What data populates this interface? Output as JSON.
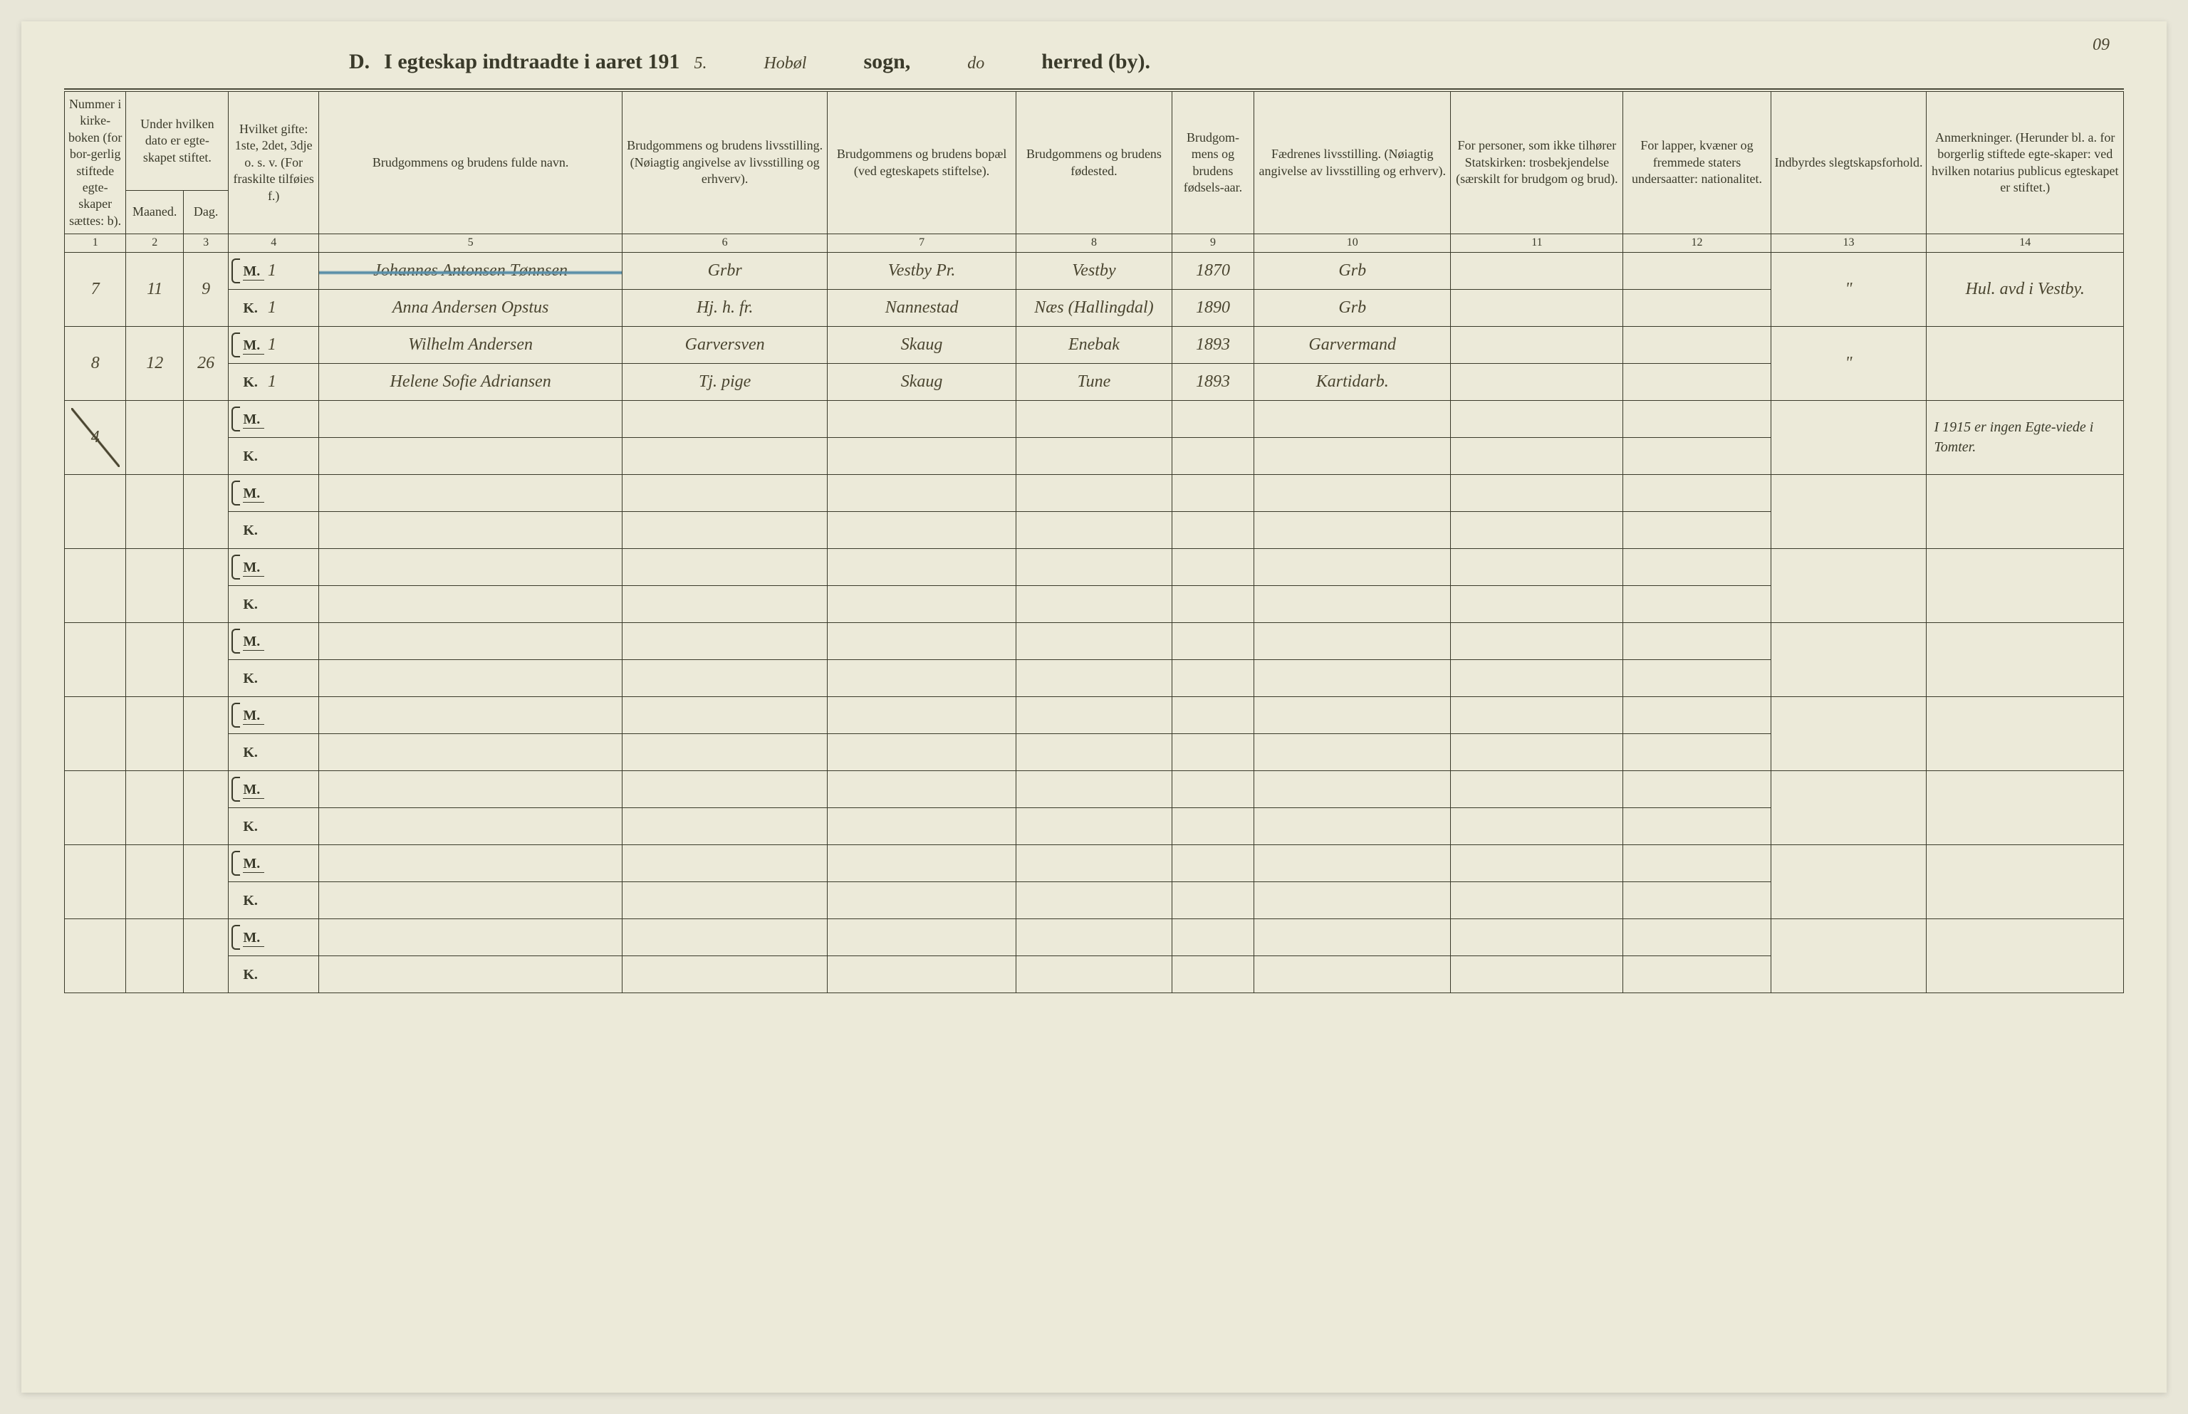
{
  "page_number_hand": "09",
  "title": {
    "prefix": "D.",
    "main": "I egteskap indtraadte i aaret 191",
    "year_hand": "5.",
    "sogn_hand": "Hobøl",
    "sogn_label": "sogn,",
    "herred_hand": "do",
    "herred_label": "herred (by)."
  },
  "headers": {
    "c1": "Nummer i kirke-boken (for bor-gerlig stiftede egte-skaper sættes: b).",
    "c2a": "Under hvilken dato er egte-skapet stiftet.",
    "c2_m": "Maaned.",
    "c2_d": "Dag.",
    "c4": "Hvilket gifte: 1ste, 2det, 3dje o. s. v. (For fraskilte tilføies f.)",
    "c5": "Brudgommens og brudens fulde navn.",
    "c6": "Brudgommens og brudens livsstilling. (Nøiagtig angivelse av livsstilling og erhverv).",
    "c7": "Brudgommens og brudens bopæl (ved egteskapets stiftelse).",
    "c8": "Brudgommens og brudens fødested.",
    "c9": "Brudgom-mens og brudens fødsels-aar.",
    "c10": "Fædrenes livsstilling. (Nøiagtig angivelse av livsstilling og erhverv).",
    "c11": "For personer, som ikke tilhører Statskirken: trosbekjendelse (særskilt for brudgom og brud).",
    "c12": "For lapper, kvæner og fremmede staters undersaatter: nationalitet.",
    "c13": "Indbyrdes slegtskapsforhold.",
    "c14": "Anmerkninger. (Herunder bl. a. for borgerlig stiftede egte-skaper: ved hvilken notarius publicus egteskapet er stiftet.)"
  },
  "col_nums": [
    "1",
    "2",
    "3",
    "4",
    "5",
    "6",
    "7",
    "8",
    "9",
    "10",
    "11",
    "12",
    "13",
    "14"
  ],
  "rows": [
    {
      "num": "7",
      "maaned": "11",
      "dag": "9",
      "m": {
        "gifte": "1",
        "navn": "Johannes Antonsen Tønnsen",
        "liv": "Grbr",
        "bopael": "Vestby Pr.",
        "fodested": "Vestby",
        "aar": "1870",
        "faedre": "Grb",
        "c11": "",
        "c12": "",
        "anm": "Hul. avd i Vestby."
      },
      "k": {
        "gifte": "1",
        "navn": "Anna Andersen Opstus",
        "liv": "Hj. h. fr.",
        "bopael": "Nannestad",
        "fodested": "Næs (Hallingdal)",
        "aar": "1890",
        "faedre": "Grb",
        "c11": "",
        "c12": "",
        "anm": ""
      },
      "c13": "\"",
      "struck": true
    },
    {
      "num": "8",
      "maaned": "12",
      "dag": "26",
      "m": {
        "gifte": "1",
        "navn": "Wilhelm Andersen",
        "liv": "Garversven",
        "bopael": "Skaug",
        "fodested": "Enebak",
        "aar": "1893",
        "faedre": "Garvermand",
        "c11": "",
        "c12": "",
        "anm": ""
      },
      "k": {
        "gifte": "1",
        "navn": "Helene Sofie Adriansen",
        "liv": "Tj. pige",
        "bopael": "Skaug",
        "fodested": "Tune",
        "aar": "1893",
        "faedre": "Kartidarb.",
        "c11": "",
        "c12": "",
        "anm": ""
      },
      "c13": "\""
    },
    {
      "num": "4",
      "diag": true,
      "note14": "I 1915 er ingen Egte-viede i Tomter."
    },
    {},
    {},
    {},
    {},
    {},
    {},
    {}
  ],
  "colors": {
    "paper": "#ecead9",
    "ink": "#3a3a2a",
    "hand_ink": "#4a4530",
    "strike": "#5a8fa8"
  }
}
